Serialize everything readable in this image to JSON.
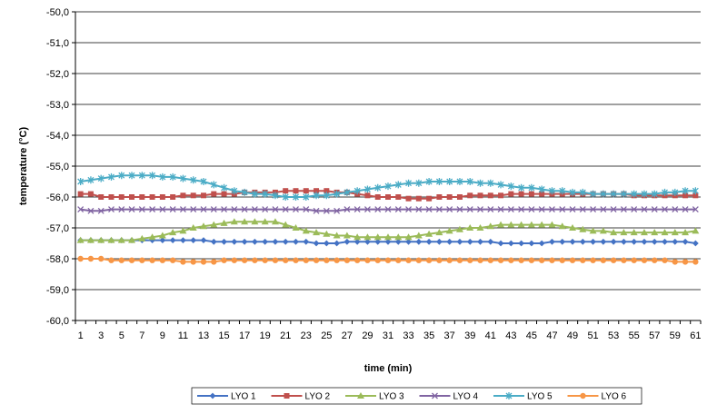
{
  "chart_data": {
    "type": "line",
    "title": "",
    "xlabel": "time (min)",
    "ylabel": "temperature (°C)",
    "ylim": [
      -60,
      -50
    ],
    "y_ticks": [
      "-50,0",
      "-51,0",
      "-52,0",
      "-53,0",
      "-54,0",
      "-55,0",
      "-56,0",
      "-57,0",
      "-58,0",
      "-59,0",
      "-60,0"
    ],
    "x_tick_labels": [
      "1",
      "3",
      "5",
      "7",
      "9",
      "11",
      "13",
      "15",
      "17",
      "19",
      "21",
      "23",
      "25",
      "27",
      "29",
      "31",
      "33",
      "35",
      "37",
      "39",
      "41",
      "43",
      "45",
      "47",
      "49",
      "51",
      "53",
      "55",
      "57",
      "59",
      "61"
    ],
    "grid": "horizontal",
    "legend_position": "bottom",
    "series": [
      {
        "name": "LYO 1",
        "color": "#4472C4",
        "marker": "diamond",
        "values": [
          -57.4,
          -57.4,
          -57.4,
          -57.4,
          -57.4,
          -57.4,
          -57.4,
          -57.4,
          -57.4,
          -57.4,
          -57.4,
          -57.4,
          -57.4,
          -57.45,
          -57.45,
          -57.45,
          -57.45,
          -57.45,
          -57.45,
          -57.45,
          -57.45,
          -57.45,
          -57.45,
          -57.5,
          -57.5,
          -57.5,
          -57.45,
          -57.45,
          -57.45,
          -57.45,
          -57.45,
          -57.45,
          -57.45,
          -57.45,
          -57.45,
          -57.45,
          -57.45,
          -57.45,
          -57.45,
          -57.45,
          -57.45,
          -57.5,
          -57.5,
          -57.5,
          -57.5,
          -57.5,
          -57.45,
          -57.45,
          -57.45,
          -57.45,
          -57.45,
          -57.45,
          -57.45,
          -57.45,
          -57.45,
          -57.45,
          -57.45,
          -57.45,
          -57.45,
          -57.45,
          -57.5
        ]
      },
      {
        "name": "LYO 2",
        "color": "#C0504D",
        "marker": "square",
        "values": [
          -55.9,
          -55.9,
          -56.0,
          -56.0,
          -56.0,
          -56.0,
          -56.0,
          -56.0,
          -56.0,
          -56.0,
          -55.95,
          -55.95,
          -55.95,
          -55.9,
          -55.9,
          -55.9,
          -55.85,
          -55.85,
          -55.85,
          -55.85,
          -55.8,
          -55.8,
          -55.8,
          -55.8,
          -55.8,
          -55.85,
          -55.85,
          -55.9,
          -55.95,
          -56.0,
          -56.0,
          -56.0,
          -56.05,
          -56.05,
          -56.05,
          -56.0,
          -56.0,
          -56.0,
          -55.95,
          -55.95,
          -55.95,
          -55.95,
          -55.9,
          -55.9,
          -55.9,
          -55.9,
          -55.9,
          -55.9,
          -55.9,
          -55.9,
          -55.9,
          -55.9,
          -55.9,
          -55.9,
          -55.95,
          -55.95,
          -55.95,
          -55.95,
          -55.95,
          -55.95,
          -55.95
        ]
      },
      {
        "name": "LYO 3",
        "color": "#9BBB59",
        "marker": "triangle",
        "values": [
          -57.4,
          -57.4,
          -57.4,
          -57.4,
          -57.4,
          -57.4,
          -57.35,
          -57.3,
          -57.25,
          -57.15,
          -57.1,
          -57.0,
          -56.95,
          -56.9,
          -56.85,
          -56.8,
          -56.8,
          -56.8,
          -56.8,
          -56.8,
          -56.9,
          -57.0,
          -57.1,
          -57.15,
          -57.2,
          -57.25,
          -57.25,
          -57.3,
          -57.3,
          -57.3,
          -57.3,
          -57.3,
          -57.3,
          -57.25,
          -57.2,
          -57.15,
          -57.1,
          -57.05,
          -57.0,
          -57.0,
          -56.95,
          -56.9,
          -56.9,
          -56.9,
          -56.9,
          -56.9,
          -56.9,
          -56.95,
          -57.0,
          -57.05,
          -57.1,
          -57.1,
          -57.15,
          -57.15,
          -57.15,
          -57.15,
          -57.15,
          -57.15,
          -57.15,
          -57.15,
          -57.1
        ]
      },
      {
        "name": "LYO 4",
        "color": "#8064A2",
        "marker": "x",
        "values": [
          -56.4,
          -56.45,
          -56.45,
          -56.4,
          -56.4,
          -56.4,
          -56.4,
          -56.4,
          -56.4,
          -56.4,
          -56.4,
          -56.4,
          -56.4,
          -56.4,
          -56.4,
          -56.4,
          -56.4,
          -56.4,
          -56.4,
          -56.4,
          -56.4,
          -56.4,
          -56.4,
          -56.45,
          -56.45,
          -56.45,
          -56.4,
          -56.4,
          -56.4,
          -56.4,
          -56.4,
          -56.4,
          -56.4,
          -56.4,
          -56.4,
          -56.4,
          -56.4,
          -56.4,
          -56.4,
          -56.4,
          -56.4,
          -56.4,
          -56.4,
          -56.4,
          -56.4,
          -56.4,
          -56.4,
          -56.4,
          -56.4,
          -56.4,
          -56.4,
          -56.4,
          -56.4,
          -56.4,
          -56.4,
          -56.4,
          -56.4,
          -56.4,
          -56.4,
          -56.4,
          -56.4
        ]
      },
      {
        "name": "LYO 5",
        "color": "#4BACC6",
        "marker": "star",
        "values": [
          -55.5,
          -55.45,
          -55.4,
          -55.35,
          -55.3,
          -55.3,
          -55.3,
          -55.3,
          -55.35,
          -55.35,
          -55.4,
          -55.45,
          -55.5,
          -55.6,
          -55.7,
          -55.8,
          -55.85,
          -55.9,
          -55.9,
          -55.95,
          -56.0,
          -56.0,
          -56.0,
          -55.95,
          -55.95,
          -55.9,
          -55.85,
          -55.8,
          -55.75,
          -55.7,
          -55.65,
          -55.6,
          -55.55,
          -55.55,
          -55.5,
          -55.5,
          -55.5,
          -55.5,
          -55.5,
          -55.55,
          -55.55,
          -55.6,
          -55.65,
          -55.7,
          -55.7,
          -55.75,
          -55.8,
          -55.8,
          -55.85,
          -55.85,
          -55.9,
          -55.9,
          -55.9,
          -55.9,
          -55.9,
          -55.9,
          -55.9,
          -55.85,
          -55.85,
          -55.8,
          -55.8
        ]
      },
      {
        "name": "LYO 6",
        "color": "#F79646",
        "marker": "circle",
        "values": [
          -58.0,
          -58.0,
          -58.0,
          -58.05,
          -58.05,
          -58.05,
          -58.05,
          -58.05,
          -58.05,
          -58.05,
          -58.1,
          -58.1,
          -58.1,
          -58.1,
          -58.05,
          -58.05,
          -58.05,
          -58.05,
          -58.05,
          -58.05,
          -58.05,
          -58.05,
          -58.05,
          -58.05,
          -58.05,
          -58.05,
          -58.05,
          -58.05,
          -58.05,
          -58.05,
          -58.05,
          -58.05,
          -58.05,
          -58.05,
          -58.05,
          -58.05,
          -58.05,
          -58.05,
          -58.05,
          -58.05,
          -58.05,
          -58.05,
          -58.05,
          -58.05,
          -58.05,
          -58.05,
          -58.05,
          -58.05,
          -58.05,
          -58.05,
          -58.05,
          -58.05,
          -58.05,
          -58.05,
          -58.05,
          -58.05,
          -58.05,
          -58.05,
          -58.1,
          -58.1,
          -58.1
        ]
      }
    ]
  }
}
